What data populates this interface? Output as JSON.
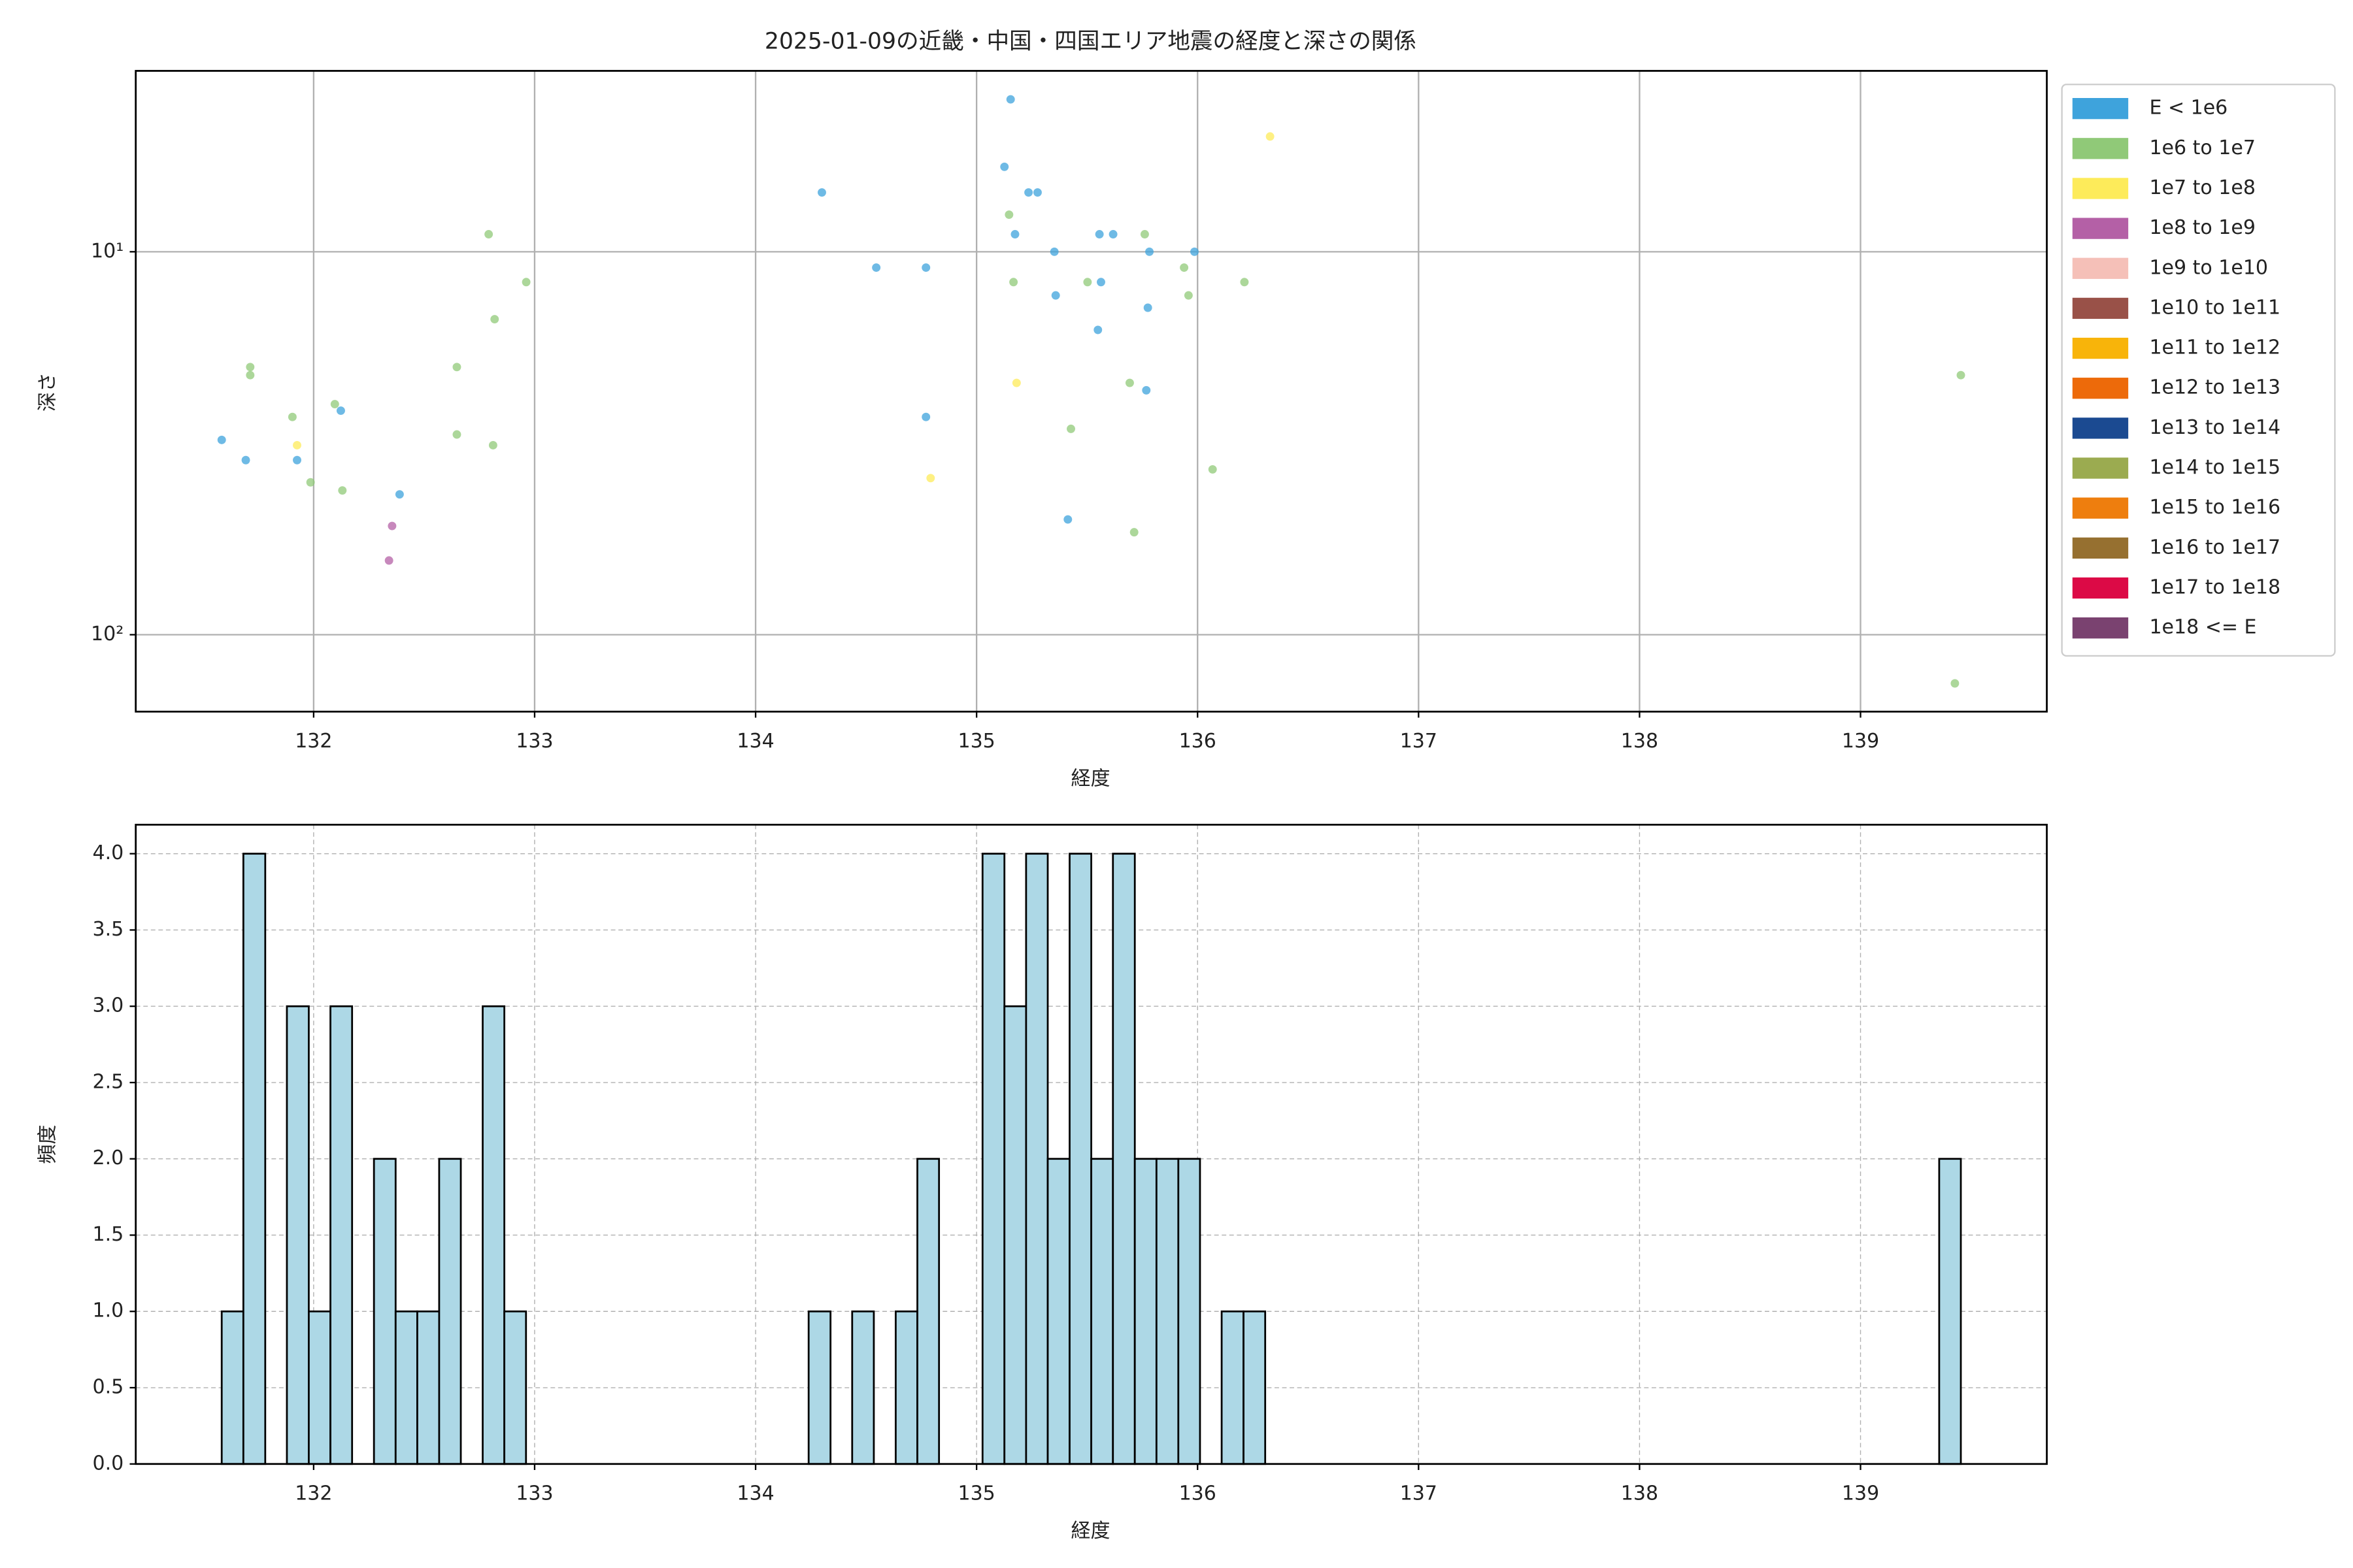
{
  "chart_data": [
    {
      "type": "scatter",
      "title": "2025-01-09の近畿・中国・四国エリア地震の経度と深さの関係",
      "xlabel": "経度",
      "ylabel": "深さ",
      "xlim": [
        131.195,
        139.843
      ],
      "xticks": [
        132,
        133,
        134,
        135,
        136,
        137,
        138,
        139
      ],
      "ylim": [
        3.37,
        158.8
      ],
      "y_log": true,
      "y_inverted": true,
      "yticks": [
        {
          "value": 10,
          "label": "10¹"
        },
        {
          "value": 100,
          "label": "10²"
        }
      ],
      "grid": true,
      "legend": "outside-right",
      "series": [
        {
          "name": "E < 1e6",
          "color": "#3ea3dc",
          "x": [
            131.584,
            131.693,
            131.925,
            132.123,
            132.389,
            134.3,
            134.546,
            134.771,
            134.771,
            135.154,
            135.126,
            135.174,
            135.235,
            135.276,
            135.352,
            135.358,
            135.556,
            135.563,
            135.618,
            135.549,
            135.775,
            135.782,
            135.768,
            135.413,
            135.986
          ],
          "values": [
            31,
            35,
            35,
            26,
            43,
            7,
            11,
            11,
            27,
            4,
            6,
            9,
            7,
            7,
            10,
            13,
            9,
            12,
            9,
            16,
            14,
            10,
            23,
            50,
            10
          ]
        },
        {
          "name": "1e6 to 1e7",
          "color": "#90c978",
          "x": [
            131.713,
            131.713,
            131.904,
            131.986,
            132.096,
            132.13,
            132.648,
            132.648,
            132.792,
            132.812,
            132.819,
            132.962,
            135.147,
            135.167,
            135.502,
            135.427,
            135.693,
            135.713,
            135.761,
            135.939,
            135.959,
            136.068,
            136.212,
            139.454,
            139.427
          ],
          "values": [
            21,
            20,
            27,
            40,
            25,
            42,
            20,
            30,
            9,
            32,
            15,
            12,
            8,
            12,
            12,
            29,
            22,
            54,
            9,
            11,
            13,
            37,
            12,
            21,
            134
          ]
        },
        {
          "name": "1e7 to 1e8",
          "color": "#fdeb5a",
          "x": [
            131.925,
            134.792,
            135.181,
            136.328
          ],
          "values": [
            32,
            39,
            22,
            5
          ]
        },
        {
          "name": "1e8 to 1e9",
          "color": "#b460a6",
          "x": [
            132.355,
            132.341
          ],
          "values": [
            52,
            64
          ]
        },
        {
          "name": "1e9 to 1e10",
          "color": "#f5c0b8",
          "x": [],
          "values": []
        },
        {
          "name": "1e10 to 1e11",
          "color": "#995148",
          "x": [],
          "values": []
        },
        {
          "name": "1e11 to 1e12",
          "color": "#f8b40a",
          "x": [],
          "values": []
        },
        {
          "name": "1e12 to 1e13",
          "color": "#ed6a0a",
          "x": [],
          "values": []
        },
        {
          "name": "1e13 to 1e14",
          "color": "#1b4a91",
          "x": [],
          "values": []
        },
        {
          "name": "1e14 to 1e15",
          "color": "#9bab50",
          "x": [],
          "values": []
        },
        {
          "name": "1e15 to 1e16",
          "color": "#ee7e0e",
          "x": [],
          "values": []
        },
        {
          "name": "1e16 to 1e17",
          "color": "#967030",
          "x": [],
          "values": []
        },
        {
          "name": "1e17 to 1e18",
          "color": "#dc0a46",
          "x": [],
          "values": []
        },
        {
          "name": "1e18 <= E",
          "color": "#7a4270",
          "x": [],
          "values": []
        }
      ]
    },
    {
      "type": "histogram",
      "xlabel": "経度",
      "ylabel": "頻度",
      "color": "#add8e6",
      "xlim": [
        131.195,
        139.843
      ],
      "xticks": [
        132,
        133,
        134,
        135,
        136,
        137,
        138,
        139
      ],
      "ylim": [
        0,
        4.19
      ],
      "yticks": [
        {
          "value": 0,
          "label": "0.0"
        },
        {
          "value": 0.5,
          "label": "0.5"
        },
        {
          "value": 1,
          "label": "1.0"
        },
        {
          "value": 1.5,
          "label": "1.5"
        },
        {
          "value": 2,
          "label": "2.0"
        },
        {
          "value": 2.5,
          "label": "2.5"
        },
        {
          "value": 3,
          "label": "3.0"
        },
        {
          "value": 3.5,
          "label": "3.5"
        },
        {
          "value": 4,
          "label": "4.0"
        }
      ],
      "grid": true,
      "bins": [
        131.584,
        131.682,
        131.781,
        131.879,
        131.978,
        132.076,
        132.174,
        132.273,
        132.371,
        132.469,
        132.568,
        132.666,
        132.765,
        132.863,
        132.961,
        133.06,
        133.158,
        133.256,
        133.355,
        133.453,
        133.552,
        133.65,
        133.748,
        133.847,
        133.945,
        134.043,
        134.142,
        134.24,
        134.339,
        134.437,
        134.535,
        134.634,
        134.732,
        134.83,
        134.929,
        135.027,
        135.126,
        135.224,
        135.322,
        135.421,
        135.519,
        135.617,
        135.716,
        135.814,
        135.913,
        136.011,
        136.109,
        136.208,
        136.306,
        136.404,
        136.503,
        136.601,
        136.7,
        136.798,
        136.896,
        136.995,
        137.093,
        137.191,
        137.29,
        137.388,
        137.487,
        137.585,
        137.683,
        137.782,
        137.88,
        137.978,
        138.077,
        138.175,
        138.274,
        138.372,
        138.47,
        138.569,
        138.667,
        138.765,
        138.864,
        138.962,
        139.061,
        139.159,
        139.257,
        139.356,
        139.454
      ],
      "counts": [
        1,
        4,
        0,
        3,
        1,
        3,
        0,
        2,
        1,
        1,
        2,
        0,
        3,
        1,
        0,
        0,
        0,
        0,
        0,
        0,
        0,
        0,
        0,
        0,
        0,
        0,
        0,
        1,
        0,
        1,
        0,
        1,
        2,
        0,
        0,
        4,
        3,
        4,
        2,
        4,
        2,
        4,
        2,
        2,
        2,
        0,
        1,
        1,
        0,
        0,
        0,
        0,
        0,
        0,
        0,
        0,
        0,
        0,
        0,
        0,
        0,
        0,
        0,
        0,
        0,
        0,
        0,
        0,
        0,
        0,
        0,
        0,
        0,
        0,
        0,
        0,
        0,
        0,
        0,
        2
      ]
    }
  ]
}
